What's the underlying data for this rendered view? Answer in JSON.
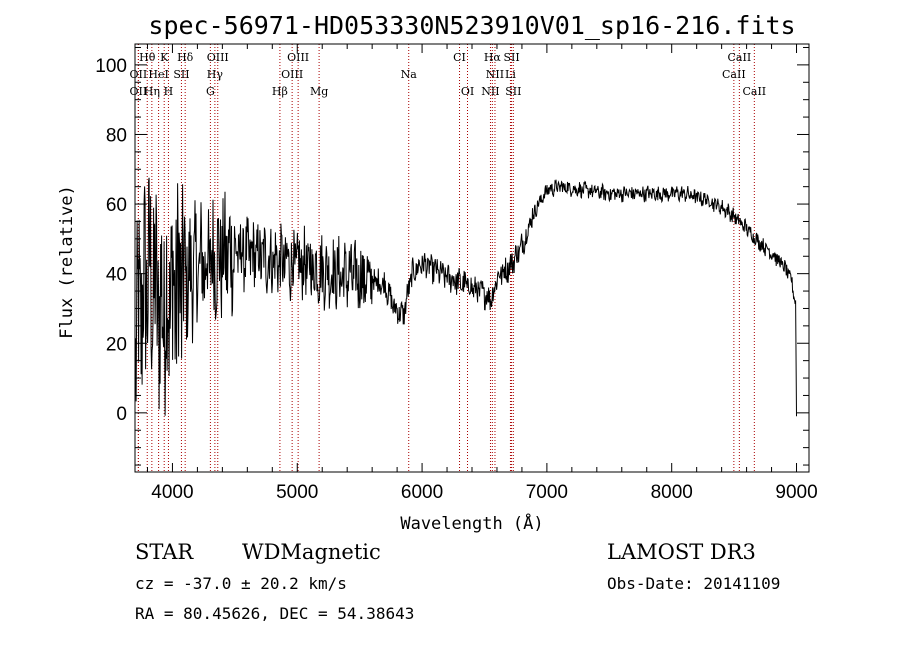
{
  "chart_data": {
    "type": "line",
    "title": "spec-56971-HD053330N523910V01_sp16-216.fits",
    "xlabel": "Wavelength (Å)",
    "ylabel": "Flux (relative)",
    "xlim": [
      3700,
      9100
    ],
    "ylim": [
      -17,
      106
    ],
    "xticks": [
      4000,
      5000,
      6000,
      7000,
      8000,
      9000
    ],
    "yticks": [
      0,
      20,
      40,
      60,
      80,
      100
    ],
    "spectrum_anchors": {
      "x": [
        3700,
        3800,
        3900,
        4000,
        4100,
        4200,
        4300,
        4400,
        4500,
        4700,
        4900,
        5100,
        5300,
        5500,
        5700,
        5780,
        5850,
        5920,
        6000,
        6200,
        6400,
        6560,
        6600,
        6700,
        6800,
        6900,
        7000,
        7100,
        7300,
        7500,
        7700,
        7900,
        8100,
        8300,
        8450,
        8600,
        8700,
        8800,
        8900,
        8960,
        9000
      ],
      "y": [
        20,
        40,
        30,
        35,
        38,
        42,
        44,
        45,
        46,
        45,
        43,
        42,
        40,
        39,
        37,
        30,
        28,
        40,
        43,
        39,
        36,
        33,
        39,
        42,
        48,
        58,
        64,
        65,
        64,
        63,
        63,
        63,
        63,
        61,
        58,
        53,
        49,
        46,
        42,
        38,
        30
      ]
    },
    "spectral_lines": [
      {
        "label": "Hθ",
        "x": 3798,
        "row": 0
      },
      {
        "label": "K",
        "x": 3934,
        "row": 0
      },
      {
        "label": "Hδ",
        "x": 4102,
        "row": 0
      },
      {
        "label": "OIII",
        "x": 4363,
        "row": 0
      },
      {
        "label": "OIII",
        "x": 5007,
        "row": 0
      },
      {
        "label": "CI",
        "x": 6300,
        "row": 0
      },
      {
        "label": "Hα",
        "x": 6563,
        "row": 0
      },
      {
        "label": "SII",
        "x": 6717,
        "row": 0
      },
      {
        "label": "CaII",
        "x": 8542,
        "row": 0
      },
      {
        "label": "OII",
        "x": 3727,
        "row": 1
      },
      {
        "label": "HeI",
        "x": 3889,
        "row": 1
      },
      {
        "label": "SII",
        "x": 4072,
        "row": 1
      },
      {
        "label": "Hγ",
        "x": 4340,
        "row": 1
      },
      {
        "label": "OIII",
        "x": 4959,
        "row": 1
      },
      {
        "label": "Na",
        "x": 5893,
        "row": 1
      },
      {
        "label": "NII",
        "x": 6584,
        "row": 1
      },
      {
        "label": "Li",
        "x": 6708,
        "row": 1
      },
      {
        "label": "CaII",
        "x": 8498,
        "row": 1
      },
      {
        "label": "OII",
        "x": 3727,
        "row": 2
      },
      {
        "label": "Hη",
        "x": 3835,
        "row": 2
      },
      {
        "label": "H",
        "x": 3968,
        "row": 2
      },
      {
        "label": "G",
        "x": 4304,
        "row": 2
      },
      {
        "label": "Hβ",
        "x": 4861,
        "row": 2
      },
      {
        "label": "Mg",
        "x": 5175,
        "row": 2
      },
      {
        "label": "OI",
        "x": 6364,
        "row": 2
      },
      {
        "label": "NII",
        "x": 6548,
        "row": 2
      },
      {
        "label": "SII",
        "x": 6731,
        "row": 2
      },
      {
        "label": "CaII",
        "x": 8662,
        "row": 2
      }
    ],
    "grid": false,
    "line_color": "#000000",
    "marker_color": "#aa0000"
  },
  "info": {
    "class_label": "STAR",
    "subclass": "WDMagnetic",
    "survey": "LAMOST DR3",
    "cz_text": "cz = -37.0 ± 20.2 km/s",
    "obs_date_text": "Obs-Date: 20141109",
    "coords_text": "RA =  80.45626, DEC =  54.38643"
  }
}
